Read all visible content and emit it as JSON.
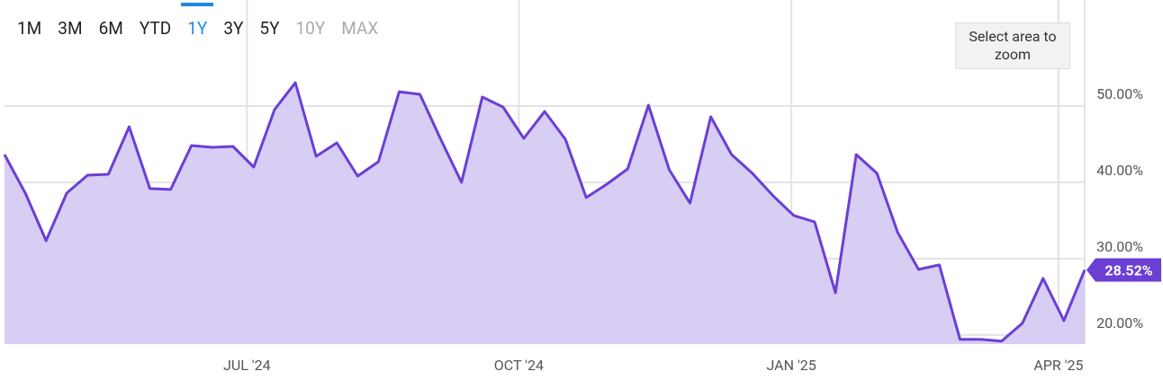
{
  "chart_data": {
    "type": "area-line",
    "range_buttons": [
      "1M",
      "3M",
      "6M",
      "YTD",
      "1Y",
      "3Y",
      "5Y",
      "10Y",
      "MAX"
    ],
    "selected_range_index": 4,
    "disabled_range_indices": [
      7,
      8
    ],
    "zoom_hint": "Select area to zoom",
    "categories": [
      null,
      null,
      null,
      null,
      null,
      null,
      null,
      null,
      null,
      null,
      null,
      null,
      null,
      null,
      null,
      null,
      null,
      null,
      null,
      null,
      null,
      null,
      null,
      null,
      null,
      null,
      null,
      null,
      null,
      null,
      null,
      null,
      null,
      null,
      null,
      null,
      null,
      null,
      null,
      null,
      null,
      null,
      null,
      null,
      null,
      null,
      null,
      null,
      null,
      null,
      null,
      null,
      null
    ],
    "series": [
      {
        "color": "#6b3fd4",
        "fill": "#d8cdf3",
        "values": [
          43.65,
          38.59,
          32.35,
          38.59,
          40.94,
          41.06,
          47.29,
          39.18,
          39.06,
          44.82,
          44.59,
          44.71,
          42.0,
          49.53,
          53.06,
          43.41,
          45.18,
          40.82,
          42.71,
          51.88,
          51.53,
          45.65,
          40.0,
          51.18,
          49.88,
          45.76,
          49.29,
          45.65,
          38.0,
          39.76,
          41.76,
          50.12,
          41.65,
          37.29,
          48.59,
          43.65,
          41.18,
          38.24,
          35.65,
          34.82,
          25.53,
          43.65,
          41.18,
          33.41,
          28.59,
          29.18,
          19.41,
          19.41,
          19.18,
          21.53,
          27.41,
          21.88,
          28.52
        ],
        "value_labels": [
          null,
          null,
          null,
          null,
          null,
          null,
          null,
          null,
          null,
          null,
          null,
          null,
          null,
          null,
          null,
          null,
          null,
          null,
          null,
          null,
          null,
          null,
          null,
          null,
          null,
          null,
          null,
          null,
          null,
          null,
          null,
          null,
          null,
          null,
          null,
          null,
          null,
          null,
          null,
          null,
          null,
          null,
          null,
          null,
          null,
          null,
          null,
          null,
          null,
          null,
          null,
          null,
          "28.52%"
        ]
      }
    ],
    "xlim": [
      0,
      52
    ],
    "xticks": [
      {
        "value": 11.67,
        "label": "JUL '24"
      },
      {
        "value": 24.76,
        "label": "OCT '24"
      },
      {
        "value": 37.88,
        "label": "JAN '25"
      },
      {
        "value": 50.74,
        "label": "APR '25"
      }
    ],
    "ylim": [
      18.8,
      63.9
    ],
    "yticks": [
      {
        "value": 20,
        "label": "20.00%"
      },
      {
        "value": 30,
        "label": "30.00%"
      },
      {
        "value": 40,
        "label": "40.00%"
      },
      {
        "value": 50,
        "label": "50.00%"
      }
    ],
    "grid": true
  }
}
